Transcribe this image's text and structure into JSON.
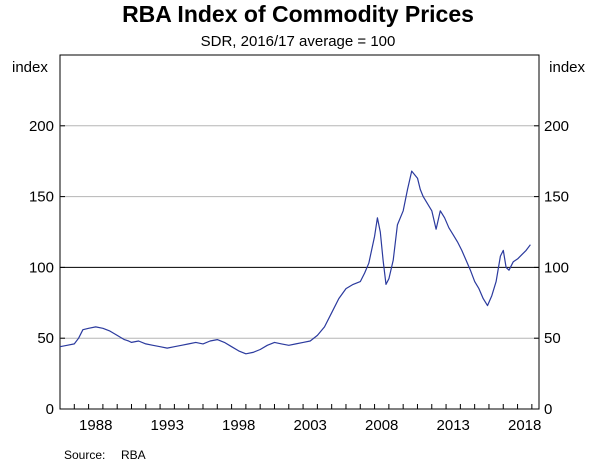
{
  "chart_data": {
    "type": "line",
    "title": "RBA Index of Commodity Prices",
    "subtitle": "SDR, 2016/17 average = 100",
    "ylabel_left": "index",
    "ylabel_right": "index",
    "ylim": [
      0,
      250
    ],
    "yticks": [
      0,
      50,
      100,
      150,
      200
    ],
    "xlim": [
      1986.0,
      2019.5
    ],
    "xticks": [
      1988,
      1993,
      1998,
      2003,
      2008,
      2013,
      2018
    ],
    "grid": true,
    "reference_line": 100,
    "line_color": "#2b3a9e",
    "source_label": "Source:",
    "source_value": "RBA",
    "series": [
      {
        "x": [
          1986.0,
          1986.5,
          1987.0,
          1987.3,
          1987.6,
          1988.0,
          1988.5,
          1989.0,
          1989.5,
          1990.0,
          1990.5,
          1990.8,
          1991.0,
          1991.5,
          1992.0,
          1992.5,
          1993.0,
          1993.5,
          1994.0,
          1994.5,
          1995.0,
          1995.5,
          1996.0,
          1996.5,
          1997.0,
          1997.5,
          1998.0,
          1998.5,
          1999.0,
          1999.5,
          2000.0,
          2000.5,
          2001.0,
          2001.5,
          2002.0,
          2002.5,
          2003.0,
          2003.5,
          2004.0,
          2004.5,
          2005.0,
          2005.5,
          2006.0,
          2006.5,
          2007.0,
          2007.3,
          2007.6,
          2008.0,
          2008.2,
          2008.4,
          2008.6,
          2008.8,
          2009.0,
          2009.3,
          2009.6,
          2010.0,
          2010.3,
          2010.6,
          2011.0,
          2011.2,
          2011.4,
          2011.7,
          2012.0,
          2012.3,
          2012.6,
          2012.9,
          2013.2,
          2013.5,
          2013.8,
          2014.1,
          2014.4,
          2014.7,
          2015.0,
          2015.3,
          2015.6,
          2015.9,
          2016.2,
          2016.5,
          2016.8,
          2017.0,
          2017.2,
          2017.4,
          2017.7,
          2018.0,
          2018.3,
          2018.6,
          2018.9
        ],
        "values": [
          44,
          45,
          46,
          50,
          56,
          57,
          58,
          57,
          55,
          52,
          49,
          48,
          47,
          48,
          46,
          45,
          44,
          43,
          44,
          45,
          46,
          47,
          46,
          48,
          49,
          47,
          44,
          41,
          39,
          40,
          42,
          45,
          47,
          46,
          45,
          46,
          47,
          48,
          52,
          58,
          68,
          78,
          85,
          88,
          90,
          96,
          103,
          122,
          135,
          125,
          105,
          88,
          92,
          105,
          130,
          140,
          155,
          168,
          163,
          155,
          150,
          145,
          140,
          127,
          140,
          135,
          128,
          123,
          118,
          112,
          105,
          98,
          90,
          85,
          78,
          73,
          80,
          90,
          108,
          112,
          100,
          98,
          104,
          106,
          109,
          112,
          116
        ]
      }
    ]
  }
}
